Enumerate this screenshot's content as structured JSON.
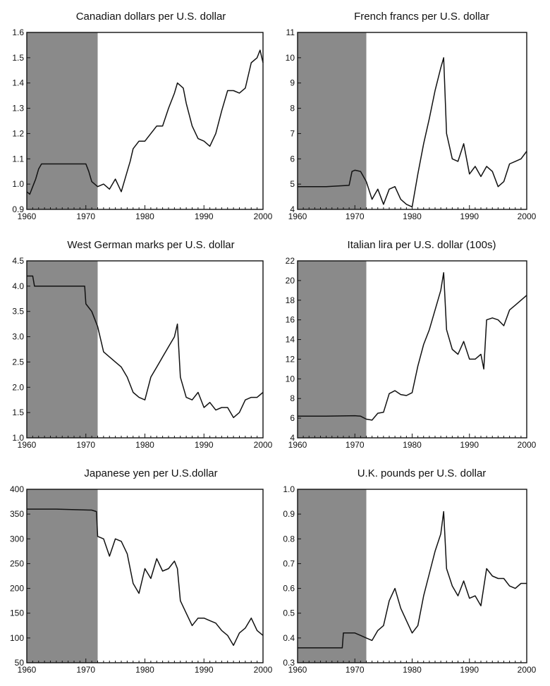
{
  "shade_color": "#8a8a8a",
  "line_color": "#111111",
  "chart_data": [
    {
      "type": "line",
      "title": "Canadian dollars per U.S. dollar",
      "xlim": [
        1960,
        2000
      ],
      "ylim": [
        0.9,
        1.6
      ],
      "xticks": [
        1960,
        1970,
        1980,
        1990,
        2000
      ],
      "yticks": [
        0.9,
        1.0,
        1.1,
        1.2,
        1.3,
        1.4,
        1.5,
        1.6
      ],
      "ytick_labels": [
        "0.9",
        "1.0",
        "1.1",
        "1.2",
        "1.3",
        "1.4",
        "1.5",
        "1.6"
      ],
      "shaded_region": [
        1960,
        1972
      ],
      "series": [
        {
          "x": [
            1960,
            1960.5,
            1961,
            1961.5,
            1962,
            1962.5,
            1963,
            1965,
            1967,
            1969,
            1970,
            1970.5,
            1971,
            1972,
            1973,
            1974,
            1975,
            1976,
            1977,
            1977.5,
            1978,
            1979,
            1980,
            1981,
            1982,
            1983,
            1984,
            1985,
            1985.5,
            1986,
            1986.5,
            1987,
            1988,
            1989,
            1990,
            1991,
            1992,
            1993,
            1994,
            1995,
            1996,
            1997,
            1998,
            1999,
            1999.5,
            2000
          ],
          "y": [
            0.97,
            0.96,
            0.99,
            1.02,
            1.06,
            1.08,
            1.08,
            1.08,
            1.08,
            1.08,
            1.08,
            1.05,
            1.01,
            0.99,
            1.0,
            0.98,
            1.02,
            0.97,
            1.05,
            1.09,
            1.14,
            1.17,
            1.17,
            1.2,
            1.23,
            1.23,
            1.3,
            1.36,
            1.4,
            1.39,
            1.38,
            1.32,
            1.23,
            1.18,
            1.17,
            1.15,
            1.2,
            1.29,
            1.37,
            1.37,
            1.36,
            1.38,
            1.48,
            1.5,
            1.53,
            1.48
          ]
        }
      ]
    },
    {
      "type": "line",
      "title": "French francs per U.S. dollar",
      "xlim": [
        1960,
        2000
      ],
      "ylim": [
        4,
        11
      ],
      "xticks": [
        1960,
        1970,
        1980,
        1990,
        2000
      ],
      "yticks": [
        4,
        5,
        6,
        7,
        8,
        9,
        10,
        11
      ],
      "ytick_labels": [
        "4",
        "5",
        "6",
        "7",
        "8",
        "9",
        "10",
        "11"
      ],
      "shaded_region": [
        1960,
        1972
      ],
      "series": [
        {
          "x": [
            1960,
            1965,
            1969,
            1969.5,
            1970,
            1971,
            1972,
            1973,
            1974,
            1975,
            1976,
            1977,
            1978,
            1979,
            1980,
            1981,
            1982,
            1983,
            1984,
            1985,
            1985.5,
            1986,
            1987,
            1988,
            1989,
            1990,
            1991,
            1992,
            1993,
            1994,
            1995,
            1996,
            1997,
            1998,
            1999,
            2000
          ],
          "y": [
            4.9,
            4.9,
            4.95,
            5.5,
            5.55,
            5.5,
            5.1,
            4.4,
            4.8,
            4.2,
            4.8,
            4.9,
            4.4,
            4.2,
            4.1,
            5.4,
            6.6,
            7.6,
            8.7,
            9.6,
            10.0,
            7.0,
            6.0,
            5.9,
            6.6,
            5.4,
            5.7,
            5.3,
            5.7,
            5.5,
            4.9,
            5.1,
            5.8,
            5.9,
            6.0,
            6.3
          ]
        }
      ]
    },
    {
      "type": "line",
      "title": "West German marks per U.S. dollar",
      "xlim": [
        1960,
        2000
      ],
      "ylim": [
        1.0,
        4.5
      ],
      "xticks": [
        1960,
        1970,
        1980,
        1990,
        2000
      ],
      "yticks": [
        1.0,
        1.5,
        2.0,
        2.5,
        3.0,
        3.5,
        4.0,
        4.5
      ],
      "ytick_labels": [
        "1.0",
        "1.5",
        "2.0",
        "2.5",
        "3.0",
        "3.5",
        "4.0",
        "4.5"
      ],
      "shaded_region": [
        1960,
        1972
      ],
      "series": [
        {
          "x": [
            1960,
            1961,
            1961.3,
            1965,
            1969,
            1969.8,
            1970,
            1971,
            1972,
            1973,
            1974,
            1975,
            1976,
            1977,
            1978,
            1979,
            1980,
            1981,
            1982,
            1983,
            1984,
            1985,
            1985.5,
            1986,
            1987,
            1988,
            1989,
            1990,
            1991,
            1992,
            1993,
            1994,
            1995,
            1996,
            1997,
            1998,
            1999,
            2000
          ],
          "y": [
            4.2,
            4.2,
            4.0,
            4.0,
            4.0,
            4.0,
            3.65,
            3.5,
            3.2,
            2.7,
            2.6,
            2.5,
            2.4,
            2.2,
            1.9,
            1.8,
            1.75,
            2.2,
            2.4,
            2.6,
            2.8,
            3.0,
            3.25,
            2.2,
            1.8,
            1.75,
            1.9,
            1.6,
            1.7,
            1.55,
            1.6,
            1.6,
            1.4,
            1.5,
            1.75,
            1.8,
            1.8,
            1.9
          ]
        }
      ]
    },
    {
      "type": "line",
      "title": "Italian lira per U.S. dollar (100s)",
      "xlim": [
        1960,
        2000
      ],
      "ylim": [
        4,
        22
      ],
      "xticks": [
        1960,
        1970,
        1980,
        1990,
        2000
      ],
      "yticks": [
        4,
        6,
        8,
        10,
        12,
        14,
        16,
        18,
        20,
        22
      ],
      "ytick_labels": [
        "4",
        "6",
        "8",
        "10",
        "12",
        "14",
        "16",
        "18",
        "20",
        "22"
      ],
      "shaded_region": [
        1960,
        1972
      ],
      "series": [
        {
          "x": [
            1960,
            1965,
            1970,
            1971,
            1972,
            1973,
            1974,
            1975,
            1976,
            1977,
            1978,
            1979,
            1980,
            1981,
            1982,
            1983,
            1984,
            1985,
            1985.5,
            1986,
            1987,
            1988,
            1989,
            1990,
            1991,
            1992,
            1992.5,
            1993,
            1994,
            1995,
            1996,
            1997,
            1998,
            1999,
            2000
          ],
          "y": [
            6.2,
            6.2,
            6.25,
            6.2,
            5.9,
            5.8,
            6.5,
            6.6,
            8.5,
            8.8,
            8.4,
            8.3,
            8.6,
            11.3,
            13.5,
            15.0,
            17.0,
            19.0,
            20.8,
            15.0,
            13.0,
            12.5,
            13.8,
            12.0,
            12.0,
            12.5,
            11.0,
            16.0,
            16.2,
            16.0,
            15.4,
            17.0,
            17.5,
            18.0,
            18.5
          ]
        }
      ]
    },
    {
      "type": "line",
      "title": "Japanese yen per U.S.dollar",
      "xlim": [
        1960,
        2000
      ],
      "ylim": [
        50,
        400
      ],
      "xticks": [
        1960,
        1970,
        1980,
        1990,
        2000
      ],
      "yticks": [
        50,
        100,
        150,
        200,
        250,
        300,
        350,
        400
      ],
      "ytick_labels": [
        "50",
        "100",
        "150",
        "200",
        "250",
        "300",
        "350",
        "400"
      ],
      "shaded_region": [
        1960,
        1972
      ],
      "series": [
        {
          "x": [
            1960,
            1965,
            1971,
            1971.8,
            1972,
            1973,
            1974,
            1975,
            1976,
            1977,
            1978,
            1979,
            1980,
            1981,
            1982,
            1983,
            1984,
            1985,
            1985.5,
            1986,
            1987,
            1988,
            1989,
            1990,
            1991,
            1992,
            1993,
            1994,
            1995,
            1996,
            1997,
            1998,
            1999,
            2000
          ],
          "y": [
            360,
            360,
            358,
            355,
            305,
            300,
            265,
            300,
            295,
            270,
            210,
            190,
            240,
            220,
            260,
            235,
            240,
            255,
            240,
            175,
            150,
            125,
            140,
            140,
            135,
            130,
            115,
            105,
            85,
            110,
            120,
            140,
            115,
            105
          ]
        }
      ]
    },
    {
      "type": "line",
      "title": "U.K. pounds per U.S. dollar",
      "xlim": [
        1960,
        2000
      ],
      "ylim": [
        0.3,
        1.0
      ],
      "xticks": [
        1960,
        1970,
        1980,
        1990,
        2000
      ],
      "yticks": [
        0.3,
        0.4,
        0.5,
        0.6,
        0.7,
        0.8,
        0.9,
        1.0
      ],
      "ytick_labels": [
        "0.3",
        "0.4",
        "0.5",
        "0.6",
        "0.7",
        "0.8",
        "0.9",
        "1.0"
      ],
      "shaded_region": [
        1960,
        1972
      ],
      "series": [
        {
          "x": [
            1960,
            1965,
            1967.8,
            1968,
            1970,
            1971,
            1972,
            1973,
            1974,
            1975,
            1976,
            1977,
            1978,
            1979,
            1980,
            1981,
            1982,
            1983,
            1984,
            1985,
            1985.5,
            1986,
            1987,
            1988,
            1989,
            1990,
            1991,
            1992,
            1993,
            1994,
            1995,
            1996,
            1997,
            1998,
            1999,
            2000
          ],
          "y": [
            0.36,
            0.36,
            0.36,
            0.42,
            0.42,
            0.41,
            0.4,
            0.39,
            0.43,
            0.45,
            0.55,
            0.6,
            0.52,
            0.47,
            0.42,
            0.45,
            0.57,
            0.66,
            0.75,
            0.82,
            0.91,
            0.68,
            0.61,
            0.57,
            0.63,
            0.56,
            0.57,
            0.53,
            0.68,
            0.65,
            0.64,
            0.64,
            0.61,
            0.6,
            0.62,
            0.62
          ]
        }
      ]
    }
  ]
}
